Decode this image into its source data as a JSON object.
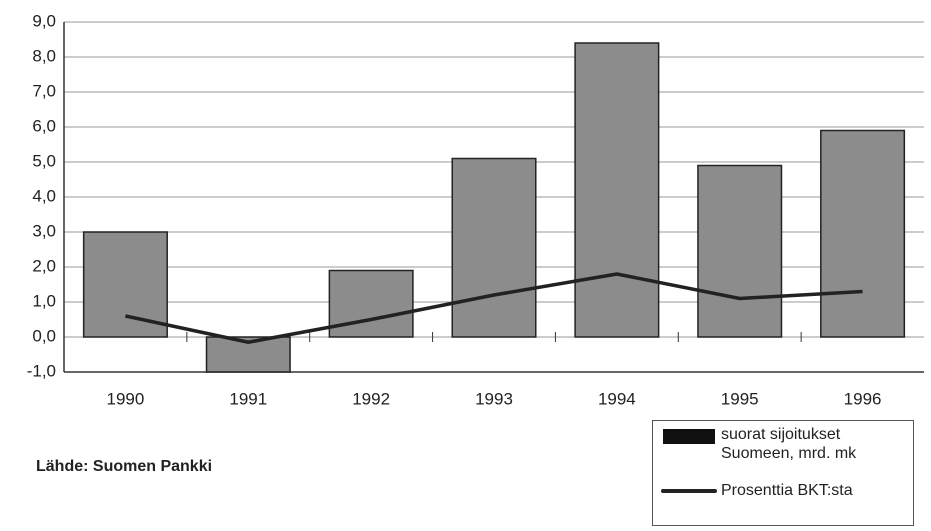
{
  "chart_data": {
    "type": "bar",
    "categories": [
      "1990",
      "1991",
      "1992",
      "1993",
      "1994",
      "1995",
      "1996"
    ],
    "series": [
      {
        "name": "suorat sijoitukset Suomeen, mrd. mk",
        "type": "bar",
        "color": "#8c8c8c",
        "values": [
          3.0,
          -1.0,
          1.9,
          5.1,
          8.4,
          4.9,
          5.9
        ]
      },
      {
        "name": "Prosenttia BKT:sta",
        "type": "line",
        "color": "#222222",
        "values": [
          0.6,
          -0.15,
          0.5,
          1.2,
          1.8,
          1.1,
          1.3
        ]
      }
    ],
    "ylim": [
      -1,
      9
    ],
    "yticks": [
      {
        "value": -1,
        "label": "-1,0"
      },
      {
        "value": 0,
        "label": "0,0"
      },
      {
        "value": 1,
        "label": "1,0"
      },
      {
        "value": 2,
        "label": "2,0"
      },
      {
        "value": 3,
        "label": "3,0"
      },
      {
        "value": 4,
        "label": "4,0"
      },
      {
        "value": 5,
        "label": "5,0"
      },
      {
        "value": 6,
        "label": "6,0"
      },
      {
        "value": 7,
        "label": "7,0"
      },
      {
        "value": 8,
        "label": "8,0"
      },
      {
        "value": 9,
        "label": "9,0"
      }
    ],
    "grid": true,
    "legend": "bottom-right",
    "source": "Lähde: Suomen Pankki"
  }
}
